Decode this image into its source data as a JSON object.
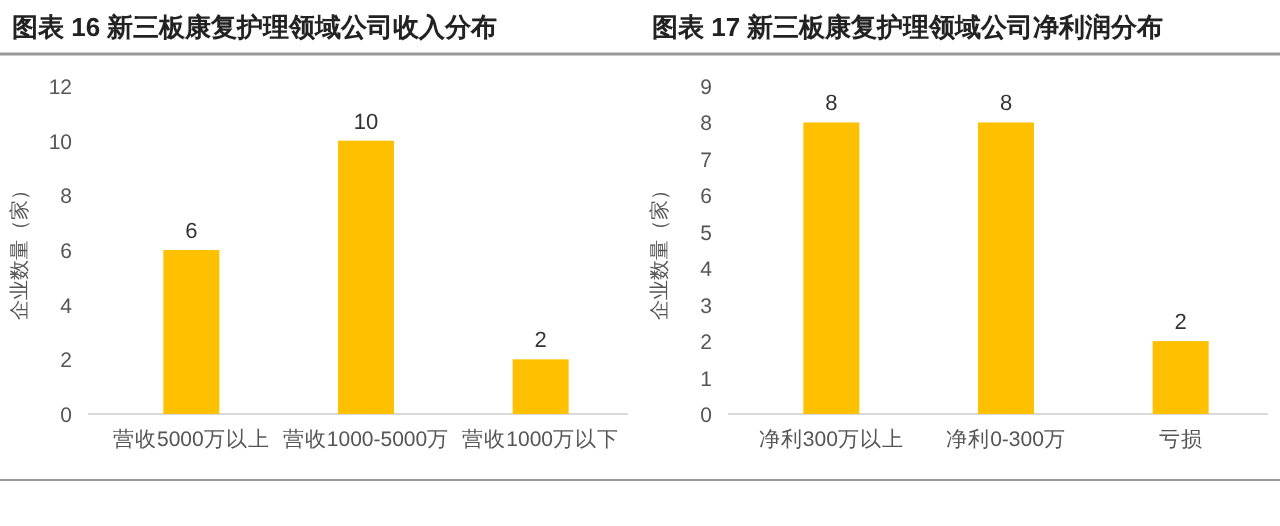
{
  "chart_data": [
    {
      "type": "bar",
      "title": "图表 16 新三板康复护理领域公司收入分布",
      "ylabel": "企业数量（家）",
      "categories": [
        "营收5000万以上",
        "营收1000-5000万",
        "营收1000万以下"
      ],
      "values": [
        6,
        10,
        2
      ],
      "color": "#ffc000",
      "ylim": [
        0,
        12
      ],
      "yticks": [
        0,
        2,
        4,
        6,
        8,
        10,
        12
      ],
      "data_labels": true
    },
    {
      "type": "bar",
      "title": "图表 17 新三板康复护理领域公司净利润分布",
      "ylabel": "企业数量（家）",
      "categories": [
        "净利300万以上",
        "净利0-300万",
        "亏损"
      ],
      "values": [
        8,
        8,
        2
      ],
      "color": "#ffc000",
      "ylim": [
        0,
        9
      ],
      "yticks": [
        0,
        1,
        2,
        3,
        4,
        5,
        6,
        7,
        8,
        9
      ],
      "data_labels": true
    }
  ]
}
